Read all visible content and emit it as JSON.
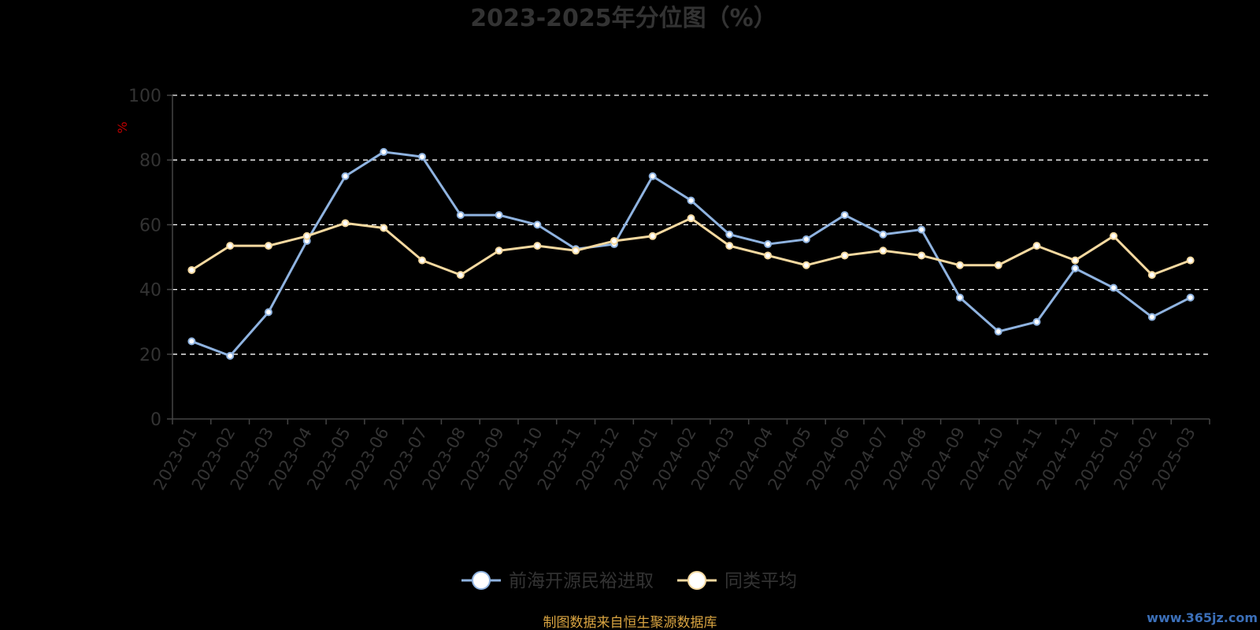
{
  "chart_data": {
    "type": "line",
    "title": "2023-2025年分位图（%）",
    "ylabel": "%",
    "xlabel": "",
    "ylim": [
      0,
      100
    ],
    "yticks": [
      0,
      20,
      40,
      60,
      80,
      100
    ],
    "grid": true,
    "legend_position": "bottom",
    "categories": [
      "2023-01",
      "2023-02",
      "2023-03",
      "2023-04",
      "2023-05",
      "2023-06",
      "2023-07",
      "2023-08",
      "2023-09",
      "2023-10",
      "2023-11",
      "2023-12",
      "2024-01",
      "2024-02",
      "2024-03",
      "2024-04",
      "2024-05",
      "2024-06",
      "2024-07",
      "2024-08",
      "2024-09",
      "2024-10",
      "2024-11",
      "2024-12",
      "2025-01",
      "2025-02",
      "2025-03"
    ],
    "series": [
      {
        "name": "前海开源民裕进取",
        "color": "#8fb3e0",
        "values": [
          24,
          19.5,
          33,
          55,
          75,
          82.5,
          81,
          63,
          63,
          60,
          52.5,
          54,
          75,
          67.5,
          57,
          54,
          55.5,
          63,
          57,
          58.5,
          37.5,
          27,
          30,
          46.5,
          40.5,
          31.5,
          37.5
        ]
      },
      {
        "name": "同类平均",
        "color": "#f5d9a0",
        "values": [
          46,
          53.5,
          53.5,
          56.5,
          60.5,
          59,
          49,
          44.5,
          52,
          53.5,
          52,
          55,
          56.5,
          62,
          53.5,
          50.5,
          47.5,
          50.5,
          52,
          50.5,
          47.5,
          47.5,
          53.5,
          49,
          56.5,
          44.5,
          49
        ]
      }
    ]
  },
  "footer": {
    "source": "制图数据来自恒生聚源数据库",
    "watermark": "www.365jz.com"
  }
}
